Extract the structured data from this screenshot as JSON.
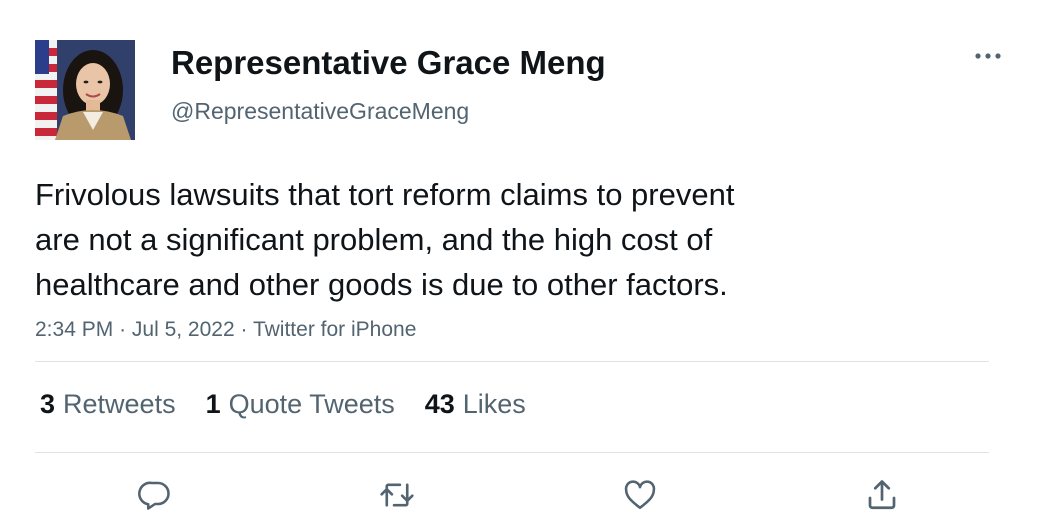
{
  "author": {
    "display_name": "Representative Grace Meng",
    "handle": "@RepresentativeGraceMeng",
    "avatar_icon": "profile-photo"
  },
  "tweet": {
    "text_lines": [
      "Frivolous lawsuits that tort reform claims to prevent",
      "are not a significant problem, and the high cost of",
      "healthcare and other goods is due to other factors."
    ],
    "time": "2:34 PM",
    "separator": "·",
    "date": "Jul 5, 2022",
    "source": "Twitter for iPhone"
  },
  "stats": {
    "retweets": {
      "count": "3",
      "label": "Retweets"
    },
    "quote_tweets": {
      "count": "1",
      "label": "Quote Tweets"
    },
    "likes": {
      "count": "43",
      "label": "Likes"
    }
  },
  "actions": {
    "reply_icon": "reply-icon",
    "retweet_icon": "retweet-icon",
    "like_icon": "heart-icon",
    "share_icon": "share-icon"
  },
  "colors": {
    "text_primary": "#0f1419",
    "text_secondary": "#536471",
    "icon": "#536471",
    "divider": "#dfe3e6"
  }
}
